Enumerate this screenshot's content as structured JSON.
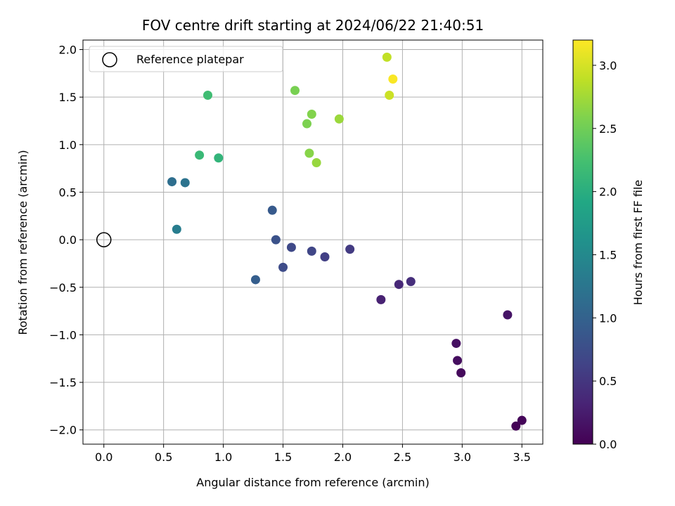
{
  "chart_data": {
    "type": "scatter",
    "title": "FOV centre drift starting at 2024/06/22 21:40:51",
    "xlabel": "Angular distance from reference (arcmin)",
    "ylabel": "Rotation from reference (arcmin)",
    "xlim": [
      -0.175,
      3.675
    ],
    "ylim": [
      -2.15,
      2.1
    ],
    "xticks": [
      0.0,
      0.5,
      1.0,
      1.5,
      2.0,
      2.5,
      3.0,
      3.5
    ],
    "xtick_labels": [
      "0.0",
      "0.5",
      "1.0",
      "1.5",
      "2.0",
      "2.5",
      "3.0",
      "3.5"
    ],
    "yticks": [
      -2.0,
      -1.5,
      -1.0,
      -0.5,
      0.0,
      0.5,
      1.0,
      1.5,
      2.0
    ],
    "ytick_labels": [
      "−2.0",
      "−1.5",
      "−1.0",
      "−0.5",
      "0.0",
      "0.5",
      "1.0",
      "1.5",
      "2.0"
    ],
    "grid": true,
    "legend": {
      "placement": "upper-left",
      "entries": [
        "Reference platepar"
      ]
    },
    "reference_point": {
      "x": 0.0,
      "y": 0.0
    },
    "colorbar": {
      "label": "Hours from first FF file",
      "range": [
        0.0,
        3.2
      ],
      "ticks": [
        0.0,
        0.5,
        1.0,
        1.5,
        2.0,
        2.5,
        3.0
      ],
      "tick_labels": [
        "0.0",
        "0.5",
        "1.0",
        "1.5",
        "2.0",
        "2.5",
        "3.0"
      ],
      "colormap": "viridis"
    },
    "points": [
      {
        "x": 3.45,
        "y": -1.96,
        "hours": 0.02
      },
      {
        "x": 3.5,
        "y": -1.9,
        "hours": 0.05
      },
      {
        "x": 2.99,
        "y": -1.4,
        "hours": 0.08
      },
      {
        "x": 2.96,
        "y": -1.27,
        "hours": 0.11
      },
      {
        "x": 2.95,
        "y": -1.09,
        "hours": 0.14
      },
      {
        "x": 3.38,
        "y": -0.79,
        "hours": 0.17
      },
      {
        "x": 2.32,
        "y": -0.63,
        "hours": 0.3
      },
      {
        "x": 2.47,
        "y": -0.47,
        "hours": 0.36
      },
      {
        "x": 2.57,
        "y": -0.44,
        "hours": 0.42
      },
      {
        "x": 2.06,
        "y": -0.1,
        "hours": 0.55
      },
      {
        "x": 1.85,
        "y": -0.18,
        "hours": 0.6
      },
      {
        "x": 1.74,
        "y": -0.12,
        "hours": 0.66
      },
      {
        "x": 1.57,
        "y": -0.08,
        "hours": 0.7
      },
      {
        "x": 1.5,
        "y": -0.29,
        "hours": 0.73
      },
      {
        "x": 1.44,
        "y": 0.0,
        "hours": 0.8
      },
      {
        "x": 1.41,
        "y": 0.31,
        "hours": 0.9
      },
      {
        "x": 1.27,
        "y": -0.42,
        "hours": 0.95
      },
      {
        "x": 0.57,
        "y": 0.61,
        "hours": 1.15
      },
      {
        "x": 0.68,
        "y": 0.6,
        "hours": 1.22
      },
      {
        "x": 0.61,
        "y": 0.11,
        "hours": 1.35
      },
      {
        "x": 0.96,
        "y": 0.86,
        "hours": 2.08
      },
      {
        "x": 0.8,
        "y": 0.89,
        "hours": 2.15
      },
      {
        "x": 0.87,
        "y": 1.52,
        "hours": 2.2
      },
      {
        "x": 1.6,
        "y": 1.57,
        "hours": 2.55
      },
      {
        "x": 1.7,
        "y": 1.22,
        "hours": 2.57
      },
      {
        "x": 1.74,
        "y": 1.32,
        "hours": 2.6
      },
      {
        "x": 1.72,
        "y": 0.91,
        "hours": 2.62
      },
      {
        "x": 1.78,
        "y": 0.81,
        "hours": 2.7
      },
      {
        "x": 1.97,
        "y": 1.27,
        "hours": 2.72
      },
      {
        "x": 2.37,
        "y": 1.92,
        "hours": 2.9
      },
      {
        "x": 2.39,
        "y": 1.52,
        "hours": 2.95
      },
      {
        "x": 2.42,
        "y": 1.69,
        "hours": 3.18
      }
    ]
  }
}
